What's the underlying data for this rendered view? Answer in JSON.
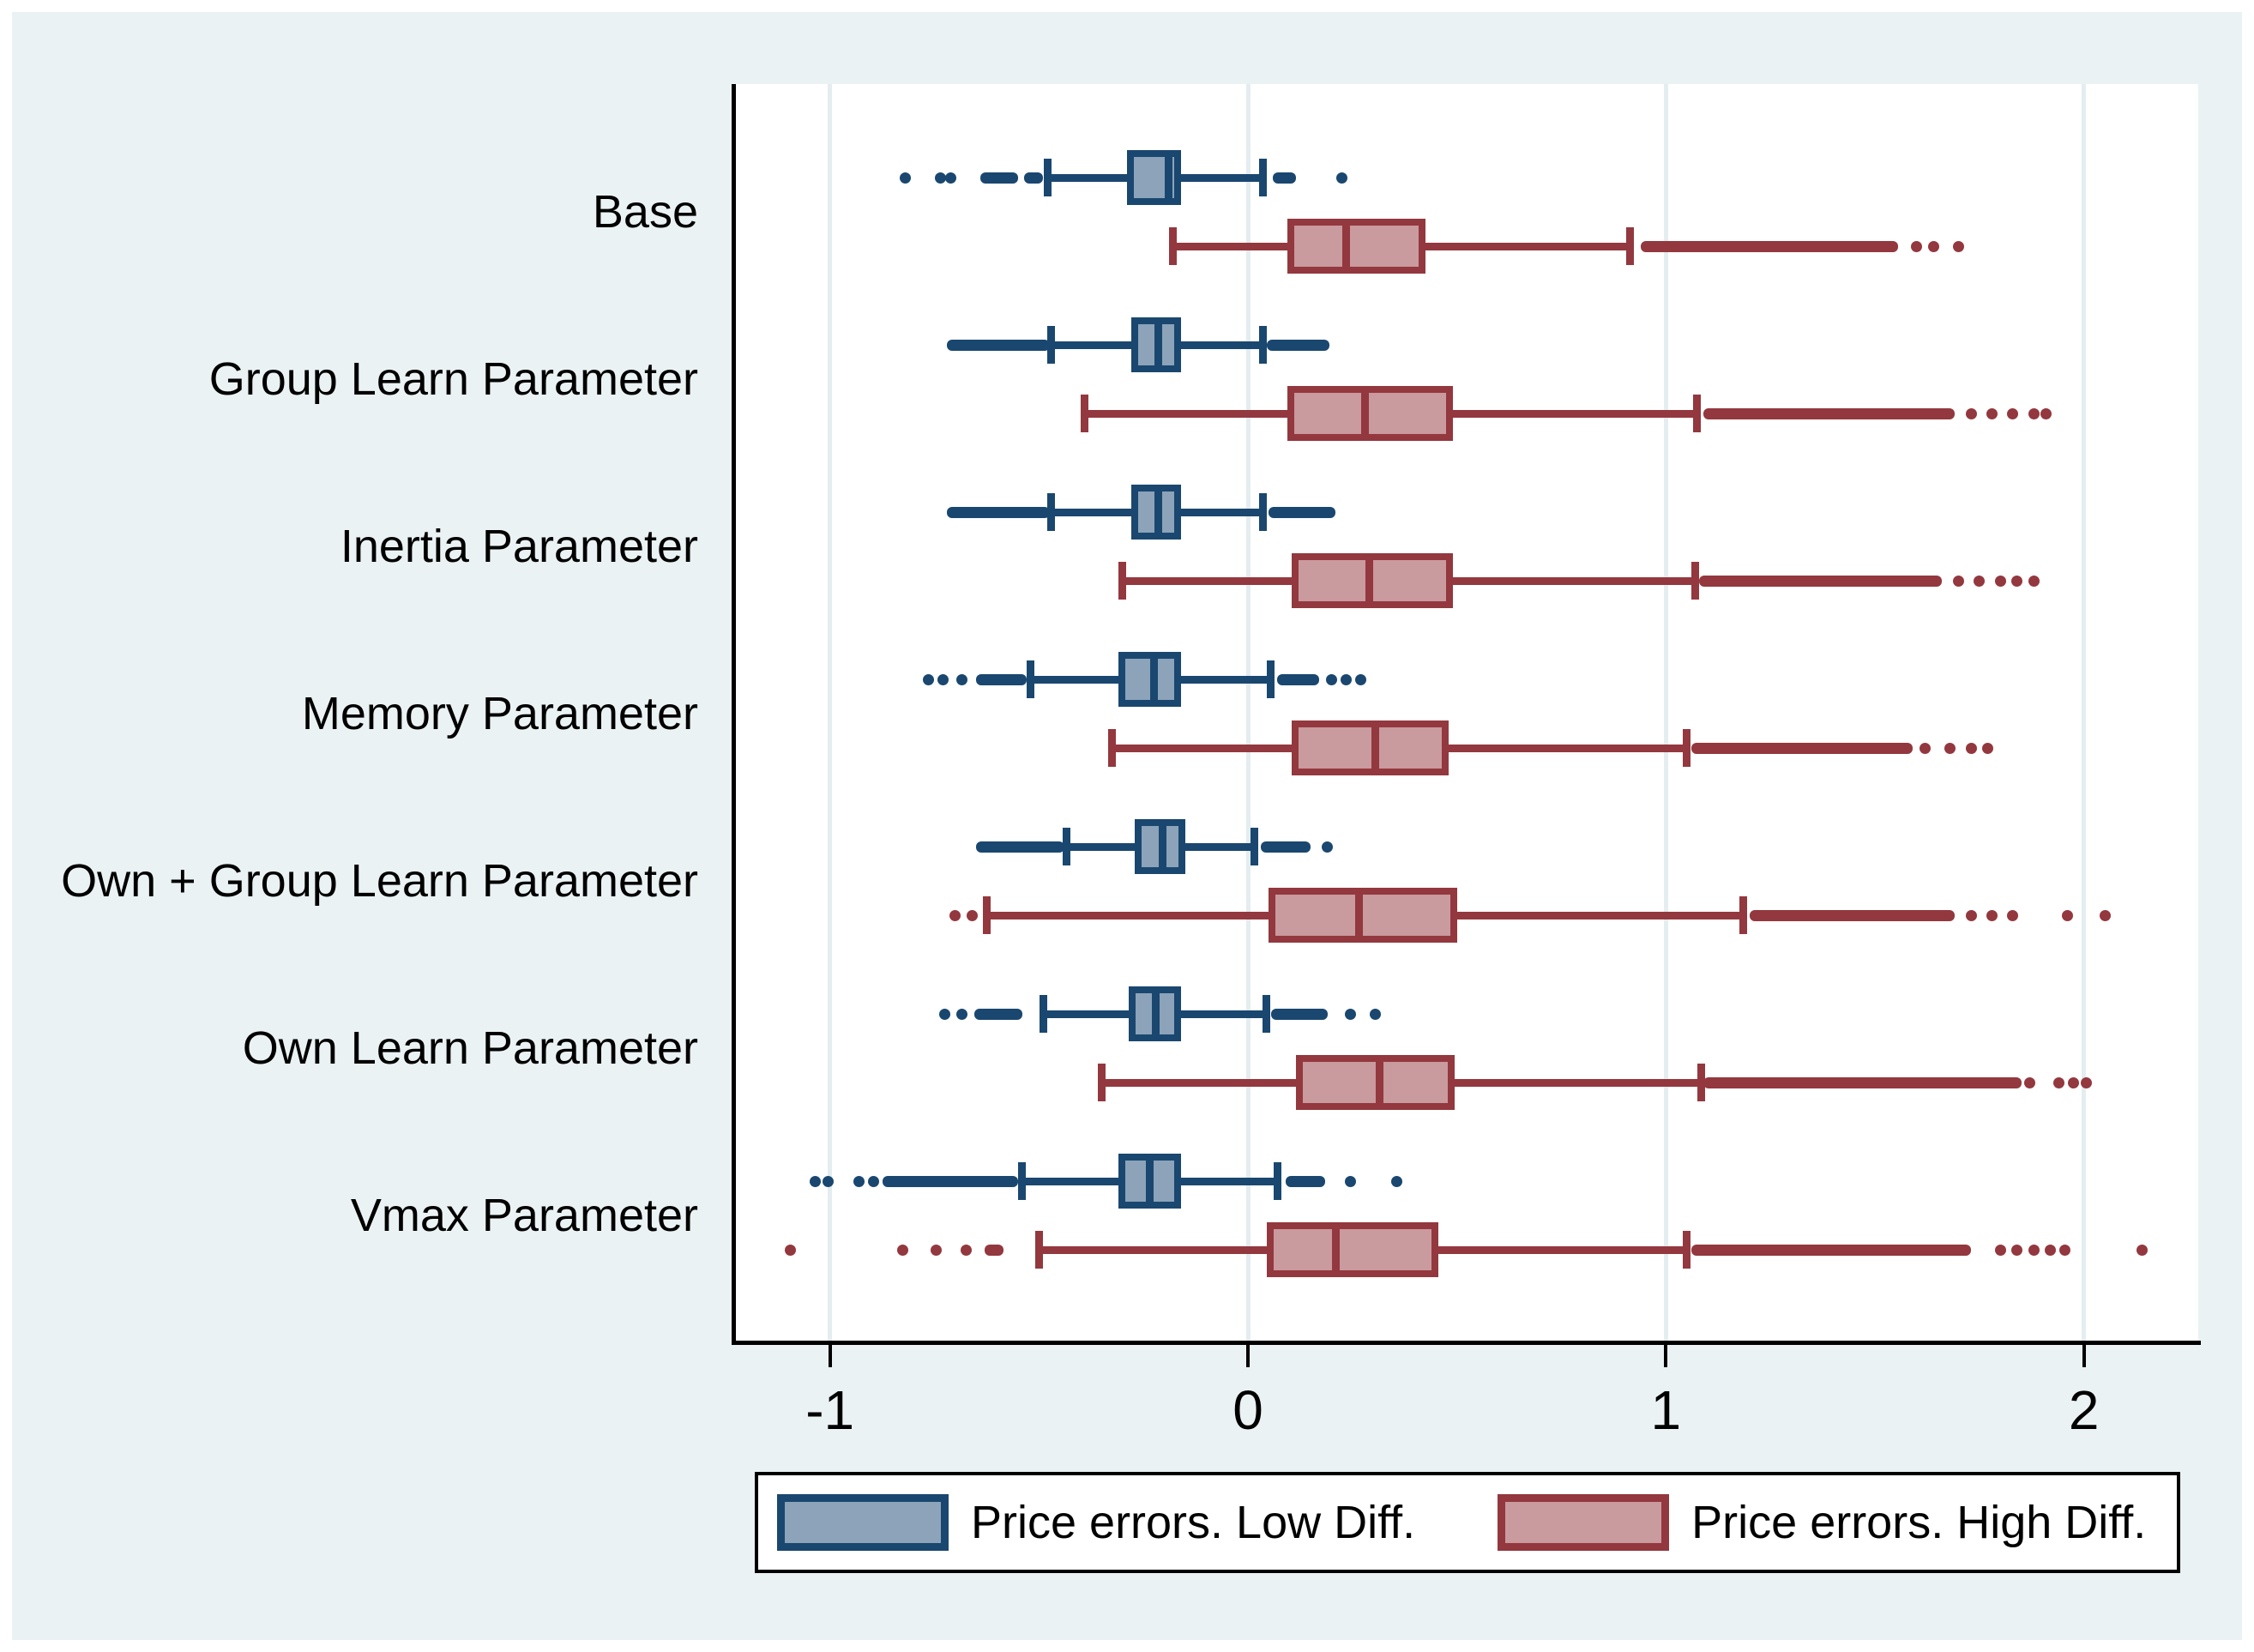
{
  "figure": {
    "background_color": "#ffffff",
    "margin_color": "#eaf2f3",
    "plot_background_color": "#ffffff",
    "grid_color": "#e4edf0",
    "axis_color": "#000000"
  },
  "legend": {
    "items": [
      {
        "label": "Price errors. Low Diff.",
        "fill": "#8ca3b9",
        "border": "#1a476f"
      },
      {
        "label": "Price errors. High Diff.",
        "fill": "#c99a9e",
        "border": "#93383e"
      }
    ]
  },
  "chart_data": {
    "type": "boxplot",
    "orientation": "horizontal",
    "title": "",
    "xlabel": "",
    "ylabel": "",
    "grid": true,
    "legend_position": "bottom",
    "x_axis": {
      "ticks": [
        -1,
        0,
        1,
        2
      ],
      "tick_labels": [
        "-1",
        "0",
        "1",
        "2"
      ],
      "range": [
        -1.23,
        2.27
      ]
    },
    "categories": [
      "Base",
      "Group Learn Parameter",
      "Inertia Parameter",
      "Memory Parameter",
      "Own + Group Learn Parameter",
      "Own Learn Parameter",
      "Vmax Parameter"
    ],
    "series": [
      {
        "name": "Price errors. Low Diff.",
        "fill": "#8ca3b9",
        "line": "#1a476f",
        "boxes": [
          {
            "category": "Base",
            "whisker_low": -0.48,
            "q1": -0.29,
            "median": -0.19,
            "q3": -0.16,
            "whisker_high": 0.035,
            "outlier_bands": [
              [
                -0.64,
                -0.55
              ],
              [
                -0.535,
                -0.49
              ],
              [
                0.06,
                0.115
              ]
            ],
            "outlier_dots": [
              -0.82,
              -0.735,
              -0.71,
              0.225
            ]
          },
          {
            "category": "Group Learn Parameter",
            "whisker_low": -0.47,
            "q1": -0.28,
            "median": -0.215,
            "q3": -0.16,
            "whisker_high": 0.035,
            "outlier_bands": [
              [
                -0.72,
                -0.475
              ],
              [
                0.045,
                0.195
              ]
            ],
            "outlier_dots": []
          },
          {
            "category": "Inertia Parameter",
            "whisker_low": -0.47,
            "q1": -0.28,
            "median": -0.215,
            "q3": -0.16,
            "whisker_high": 0.035,
            "outlier_bands": [
              [
                -0.72,
                -0.475
              ],
              [
                0.05,
                0.21
              ]
            ],
            "outlier_dots": []
          },
          {
            "category": "Memory Parameter",
            "whisker_low": -0.52,
            "q1": -0.31,
            "median": -0.225,
            "q3": -0.16,
            "whisker_high": 0.055,
            "outlier_bands": [
              [
                -0.65,
                -0.53
              ],
              [
                0.07,
                0.17
              ]
            ],
            "outlier_dots": [
              -0.765,
              -0.73,
              -0.685,
              0.2,
              0.235,
              0.27
            ]
          },
          {
            "category": "Own + Group Learn Parameter",
            "whisker_low": -0.435,
            "q1": -0.27,
            "median": -0.205,
            "q3": -0.15,
            "whisker_high": 0.015,
            "outlier_bands": [
              [
                -0.65,
                -0.44
              ],
              [
                0.03,
                0.15
              ]
            ],
            "outlier_dots": [
              0.19
            ]
          },
          {
            "category": "Own Learn Parameter",
            "whisker_low": -0.49,
            "q1": -0.285,
            "median": -0.22,
            "q3": -0.16,
            "whisker_high": 0.045,
            "outlier_bands": [
              [
                -0.655,
                -0.54
              ],
              [
                0.055,
                0.19
              ]
            ],
            "outlier_dots": [
              -0.725,
              -0.685,
              0.245,
              0.305
            ]
          },
          {
            "category": "Vmax Parameter",
            "whisker_low": -0.54,
            "q1": -0.31,
            "median": -0.235,
            "q3": -0.16,
            "whisker_high": 0.07,
            "outlier_bands": [
              [
                -0.875,
                -0.55
              ],
              [
                0.09,
                0.185
              ]
            ],
            "outlier_dots": [
              -1.035,
              -1.005,
              -0.93,
              -0.895,
              0.245,
              0.355
            ]
          }
        ]
      },
      {
        "name": "Price errors. High Diff.",
        "fill": "#c99a9e",
        "line": "#93383e",
        "boxes": [
          {
            "category": "Base",
            "whisker_low": -0.18,
            "q1": 0.095,
            "median": 0.235,
            "q3": 0.425,
            "whisker_high": 0.915,
            "outlier_bands": [
              [
                0.94,
                1.555
              ]
            ],
            "outlier_dots": [
              1.6,
              1.64,
              1.7
            ]
          },
          {
            "category": "Group Learn Parameter",
            "whisker_low": -0.39,
            "q1": 0.095,
            "median": 0.28,
            "q3": 0.49,
            "whisker_high": 1.075,
            "outlier_bands": [
              [
                1.09,
                1.69
              ]
            ],
            "outlier_dots": [
              1.73,
              1.78,
              1.83,
              1.88,
              1.91
            ]
          },
          {
            "category": "Inertia Parameter",
            "whisker_low": -0.3,
            "q1": 0.105,
            "median": 0.29,
            "q3": 0.49,
            "whisker_high": 1.07,
            "outlier_bands": [
              [
                1.08,
                1.66
              ]
            ],
            "outlier_dots": [
              1.7,
              1.75,
              1.8,
              1.84,
              1.88
            ]
          },
          {
            "category": "Memory Parameter",
            "whisker_low": -0.325,
            "q1": 0.105,
            "median": 0.305,
            "q3": 0.48,
            "whisker_high": 1.05,
            "outlier_bands": [
              [
                1.06,
                1.59
              ]
            ],
            "outlier_dots": [
              1.62,
              1.68,
              1.73,
              1.77
            ]
          },
          {
            "category": "Own + Group Learn Parameter",
            "whisker_low": -0.625,
            "q1": 0.05,
            "median": 0.265,
            "q3": 0.5,
            "whisker_high": 1.185,
            "outlier_bands": [
              [
                1.2,
                1.69
              ]
            ],
            "outlier_dots": [
              -0.7,
              -0.66,
              1.73,
              1.78,
              1.83,
              1.96,
              2.05
            ]
          },
          {
            "category": "Own Learn Parameter",
            "whisker_low": -0.35,
            "q1": 0.115,
            "median": 0.315,
            "q3": 0.495,
            "whisker_high": 1.085,
            "outlier_bands": [
              [
                1.09,
                1.85
              ]
            ],
            "outlier_dots": [
              1.87,
              1.94,
              1.975,
              2.005
            ]
          },
          {
            "category": "Vmax Parameter",
            "whisker_low": -0.5,
            "q1": 0.045,
            "median": 0.21,
            "q3": 0.455,
            "whisker_high": 1.05,
            "outlier_bands": [
              [
                -0.63,
                -0.585
              ],
              [
                1.06,
                1.73
              ]
            ],
            "outlier_dots": [
              -1.095,
              -0.825,
              -0.745,
              -0.675,
              1.8,
              1.84,
              1.88,
              1.92,
              1.955,
              2.14
            ]
          }
        ]
      }
    ]
  }
}
